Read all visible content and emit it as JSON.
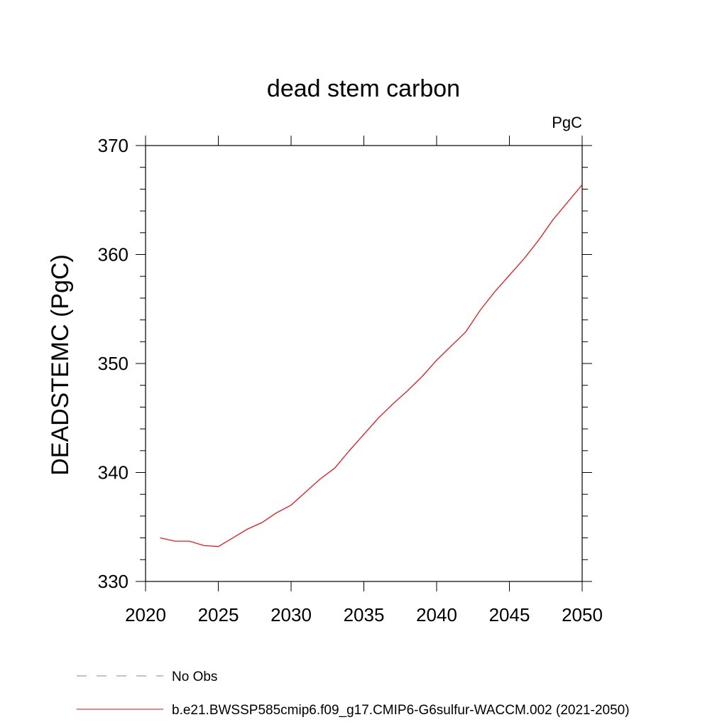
{
  "chart_data": {
    "type": "line",
    "title": "dead stem carbon",
    "units_label": "PgC",
    "ylabel": "DEADSTEMC  (PgC)",
    "xlabel": "",
    "xlim": [
      2020,
      2050
    ],
    "ylim": [
      330,
      370
    ],
    "x_ticks": [
      2020,
      2025,
      2030,
      2035,
      2040,
      2045,
      2050
    ],
    "y_ticks": [
      330,
      340,
      350,
      360,
      370
    ],
    "grid": false,
    "legend_position": "bottom",
    "x": [
      2021,
      2022,
      2023,
      2024,
      2025,
      2026,
      2027,
      2028,
      2029,
      2030,
      2031,
      2032,
      2033,
      2034,
      2035,
      2036,
      2037,
      2038,
      2039,
      2040,
      2041,
      2042,
      2043,
      2044,
      2045,
      2046,
      2047,
      2048,
      2049,
      2050
    ],
    "series": [
      {
        "name": "b.e21.BWSSP585cmip6.f09_g17.CMIP6-G6sulfur-WACCM.002 (2021-2050)",
        "color": "#ff0000",
        "style": "solid",
        "values": [
          334.0,
          333.7,
          333.7,
          333.3,
          333.2,
          334.0,
          334.8,
          335.4,
          336.3,
          337.0,
          338.2,
          339.4,
          340.4,
          342.0,
          343.5,
          345.0,
          346.3,
          347.5,
          348.8,
          350.3,
          351.6,
          352.9,
          354.9,
          356.6,
          358.1,
          359.6,
          361.3,
          363.2,
          364.8,
          366.4
        ]
      }
    ],
    "legend": [
      {
        "label": "No Obs",
        "color": "#8080c0",
        "style": "dashed"
      },
      {
        "label": "b.e21.BWSSP585cmip6.f09_g17.CMIP6-G6sulfur-WACCM.002 (2021-2050)",
        "color": "#ff0000",
        "style": "solid"
      }
    ]
  }
}
